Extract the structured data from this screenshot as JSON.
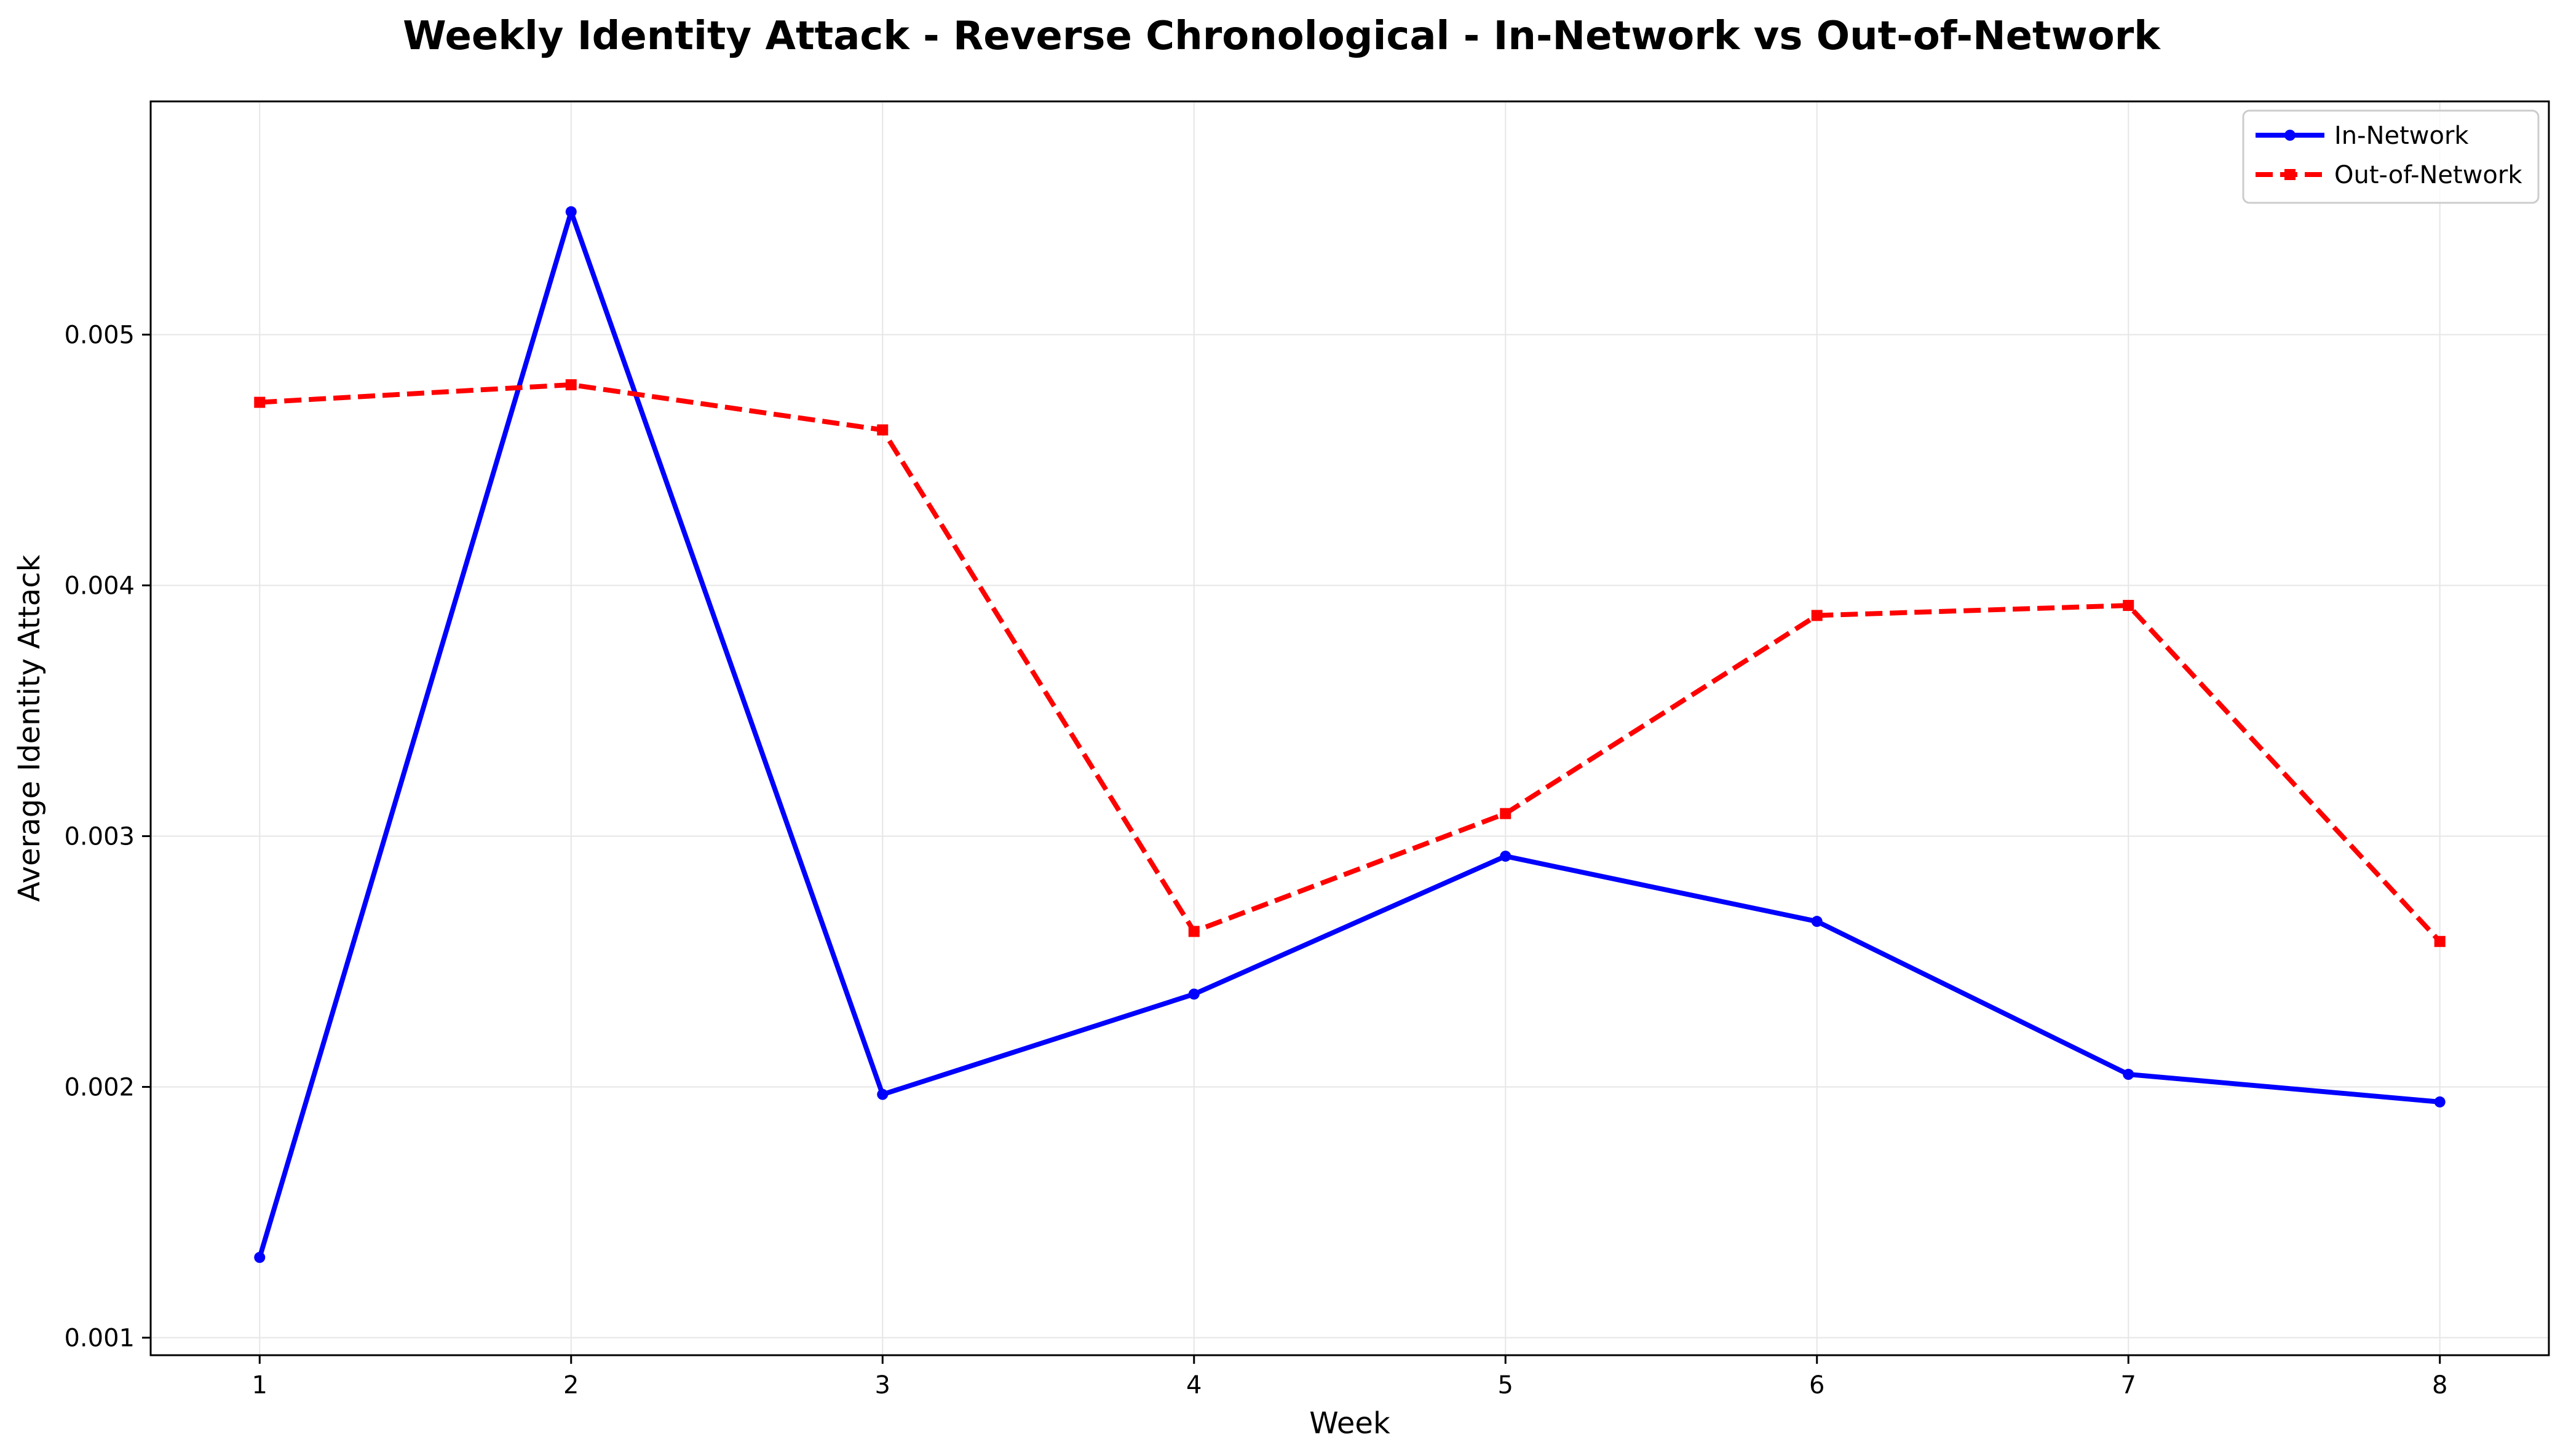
{
  "chart_data": {
    "type": "line",
    "title": "Weekly Identity Attack - Reverse Chronological - In-Network vs Out-of-Network",
    "xlabel": "Week",
    "ylabel": "Average Identity Attack",
    "x": [
      1,
      2,
      3,
      4,
      5,
      6,
      7,
      8
    ],
    "xlim": [
      0.65,
      8.35
    ],
    "ylim": [
      0.00093,
      0.00593
    ],
    "yticks": [
      0.001,
      0.002,
      0.003,
      0.004,
      0.005
    ],
    "ytick_labels": [
      "0.001",
      "0.002",
      "0.003",
      "0.004",
      "0.005"
    ],
    "xtick_labels": [
      "1",
      "2",
      "3",
      "4",
      "5",
      "6",
      "7",
      "8"
    ],
    "grid": true,
    "legend_position": "top-right",
    "series": [
      {
        "name": "In-Network",
        "color": "#0000ff",
        "line_style": "solid",
        "marker": "circle",
        "values": [
          0.00132,
          0.00549,
          0.00197,
          0.00237,
          0.00292,
          0.00266,
          0.00205,
          0.00194
        ]
      },
      {
        "name": "Out-of-Network",
        "color": "#ff0000",
        "line_style": "dashed",
        "marker": "square",
        "values": [
          0.00473,
          0.0048,
          0.00462,
          0.00262,
          0.00309,
          0.00388,
          0.00392,
          0.00258
        ]
      }
    ]
  }
}
